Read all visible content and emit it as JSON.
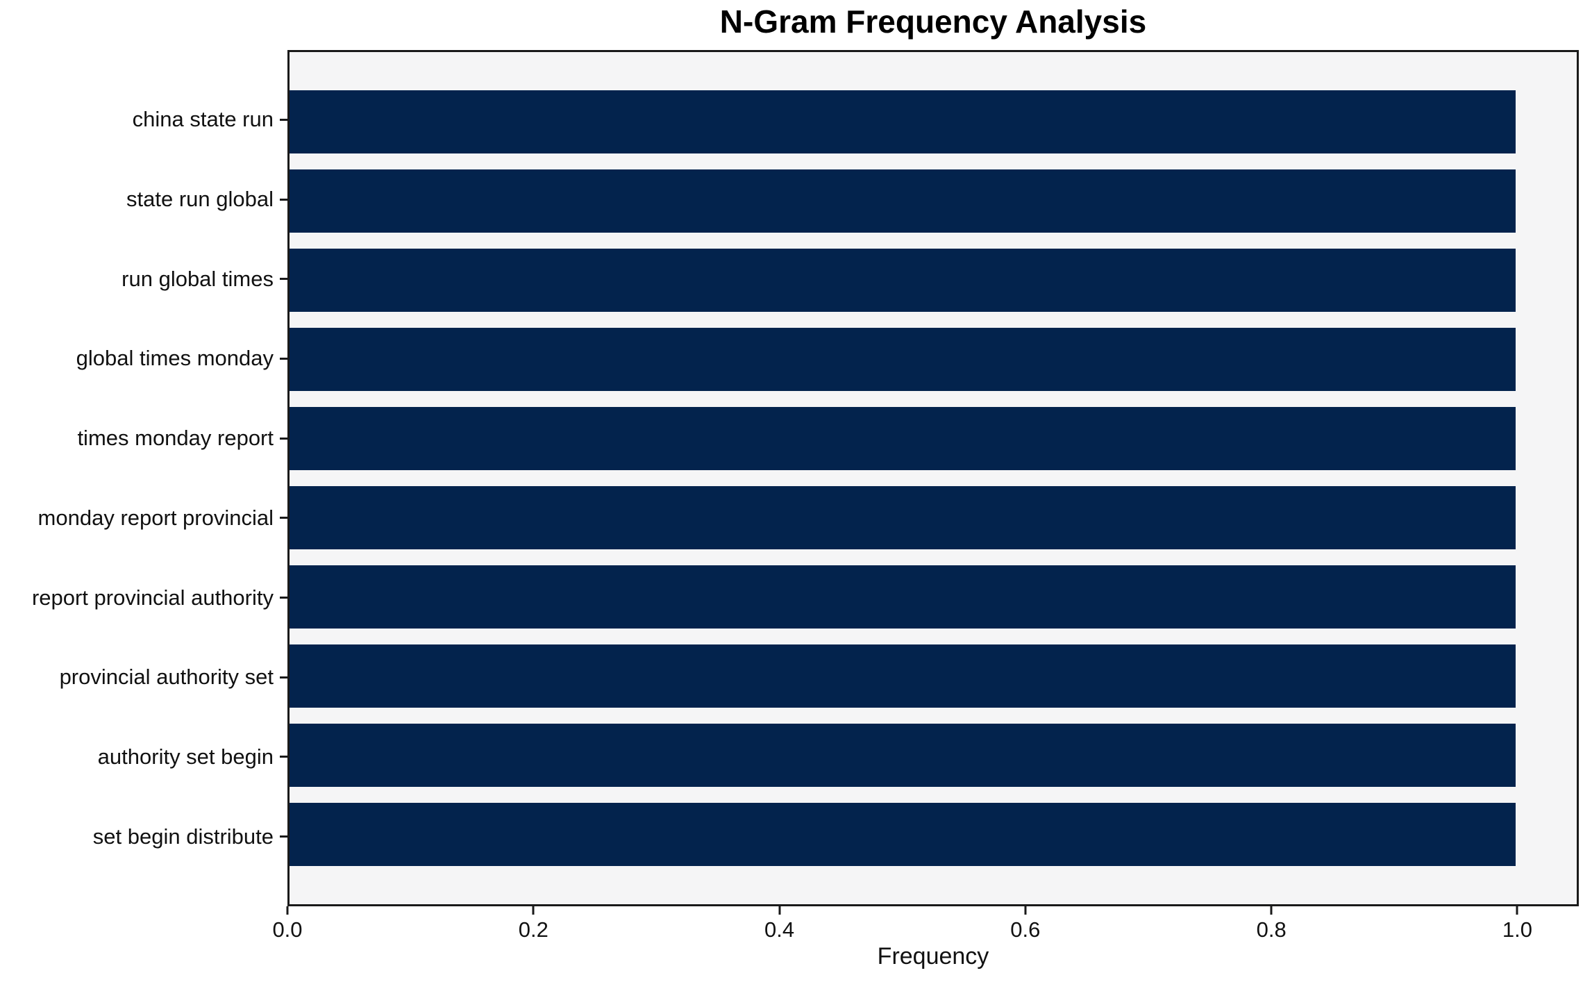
{
  "chart_data": {
    "type": "bar",
    "orientation": "horizontal",
    "title": "N-Gram Frequency Analysis",
    "xlabel": "Frequency",
    "ylabel": "",
    "categories": [
      "china state run",
      "state run global",
      "run global times",
      "global times monday",
      "times monday report",
      "monday report provincial",
      "report provincial authority",
      "provincial authority set",
      "authority set begin",
      "set begin distribute"
    ],
    "values": [
      1.0,
      1.0,
      1.0,
      1.0,
      1.0,
      1.0,
      1.0,
      1.0,
      1.0,
      1.0
    ],
    "xlim": [
      0,
      1.05
    ],
    "xticks": [
      0.0,
      0.2,
      0.4,
      0.6,
      0.8,
      1.0
    ],
    "xtick_labels": [
      "0.0",
      "0.2",
      "0.4",
      "0.6",
      "0.8",
      "1.0"
    ],
    "grid": false,
    "legend_position": "none",
    "bar_color": "#03234d",
    "plot_background": "#f5f5f6",
    "figure_background": "#ffffff",
    "spine_color": "#1a1a1a"
  }
}
